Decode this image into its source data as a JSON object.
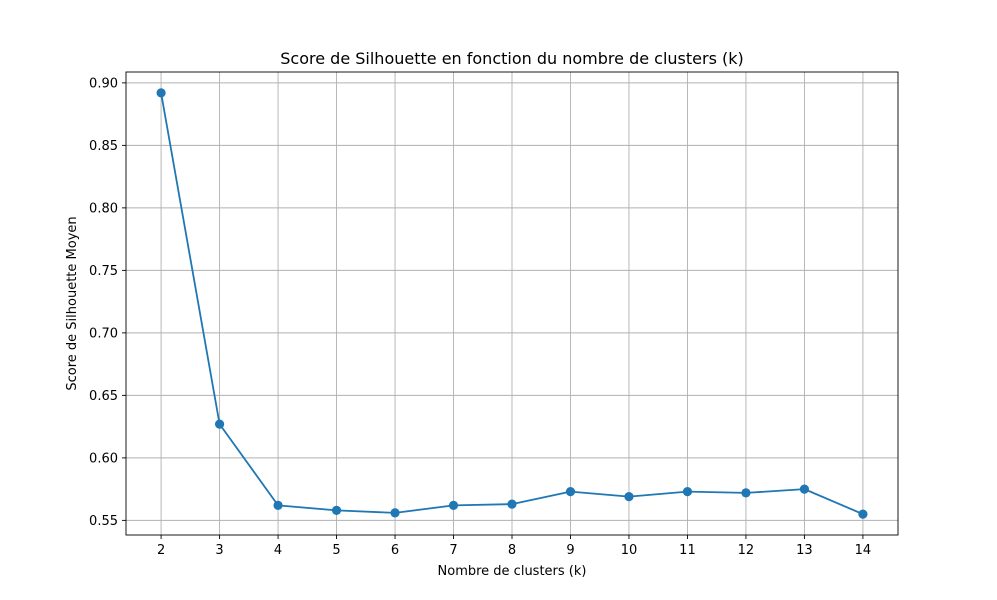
{
  "chart_data": {
    "type": "line",
    "title": "Score de Silhouette en fonction du nombre de clusters (k)",
    "xlabel": "Nombre de clusters (k)",
    "ylabel": "Score de Silhouette Moyen",
    "x": [
      2,
      3,
      4,
      5,
      6,
      7,
      8,
      9,
      10,
      11,
      12,
      13,
      14
    ],
    "x_tick_labels": [
      "2",
      "3",
      "4",
      "5",
      "6",
      "7",
      "8",
      "9",
      "10",
      "11",
      "12",
      "13",
      "14"
    ],
    "y_ticks": [
      0.55,
      0.6,
      0.65,
      0.7,
      0.75,
      0.8,
      0.85,
      0.9
    ],
    "y_tick_labels": [
      "0.55",
      "0.60",
      "0.65",
      "0.70",
      "0.75",
      "0.80",
      "0.85",
      "0.90"
    ],
    "series": [
      {
        "values": [
          0.892,
          0.627,
          0.562,
          0.558,
          0.556,
          0.562,
          0.563,
          0.573,
          0.569,
          0.573,
          0.572,
          0.575,
          0.555
        ],
        "color": "#1f77b4",
        "marker": "circle"
      }
    ],
    "xlim": [
      1.4,
      14.6
    ],
    "ylim": [
      0.5383,
      0.9087
    ],
    "grid": true,
    "legend": "none"
  }
}
